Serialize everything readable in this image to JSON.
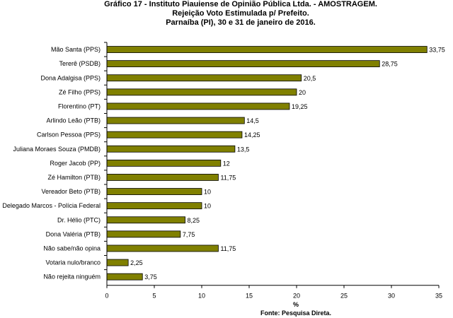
{
  "chart_data": {
    "type": "bar",
    "orientation": "horizontal",
    "title": [
      "Gráfico    17    -    Instituto Piauiense de Opinião Pública Ltda. - AMOSTRAGEM.",
      "Rejeição Voto Estimulada p/ Prefeito.",
      "Parnaíba (PI), 30 e 31 de janeiro de 2016."
    ],
    "categories": [
      "Mão Santa (PPS)",
      "Tererê (PSDB)",
      "Dona Adalgisa (PPS)",
      "Zé Filho (PPS)",
      "Florentino (PT)",
      "Arlindo Leão (PTB)",
      "Carlson Pessoa (PPS)",
      "Juliana Moraes Souza (PMDB)",
      "Roger Jacob (PP)",
      "Zé Hamilton (PTB)",
      "Vereador Beto (PTB)",
      "Delegado Marcos - Polícia Federal",
      "Dr. Hélio (PTC)",
      "Dona Valéria (PTB)",
      "Não sabe/não opina",
      "Votaria nulo/branco",
      "Não rejeita ninguém"
    ],
    "values": [
      33.75,
      28.75,
      20.5,
      20,
      19.25,
      14.5,
      14.25,
      13.5,
      12,
      11.75,
      10,
      10,
      8.25,
      7.75,
      11.75,
      2.25,
      3.75
    ],
    "value_labels": [
      "33,75",
      "28,75",
      "20,5",
      "20",
      "19,25",
      "14,5",
      "14,25",
      "13,5",
      "12",
      "11,75",
      "10",
      "10",
      "8,25",
      "7,75",
      "11,75",
      "2,25",
      "3,75"
    ],
    "xlabel": "%",
    "ylabel": "",
    "xlim": [
      0,
      35
    ],
    "x_ticks": [
      0,
      5,
      10,
      15,
      20,
      25,
      30,
      35
    ],
    "grid": false,
    "legend": "none",
    "bar_color": "#808000",
    "bar_edge_color": "#000000",
    "source": "Fonte: Pesquisa Direta."
  }
}
